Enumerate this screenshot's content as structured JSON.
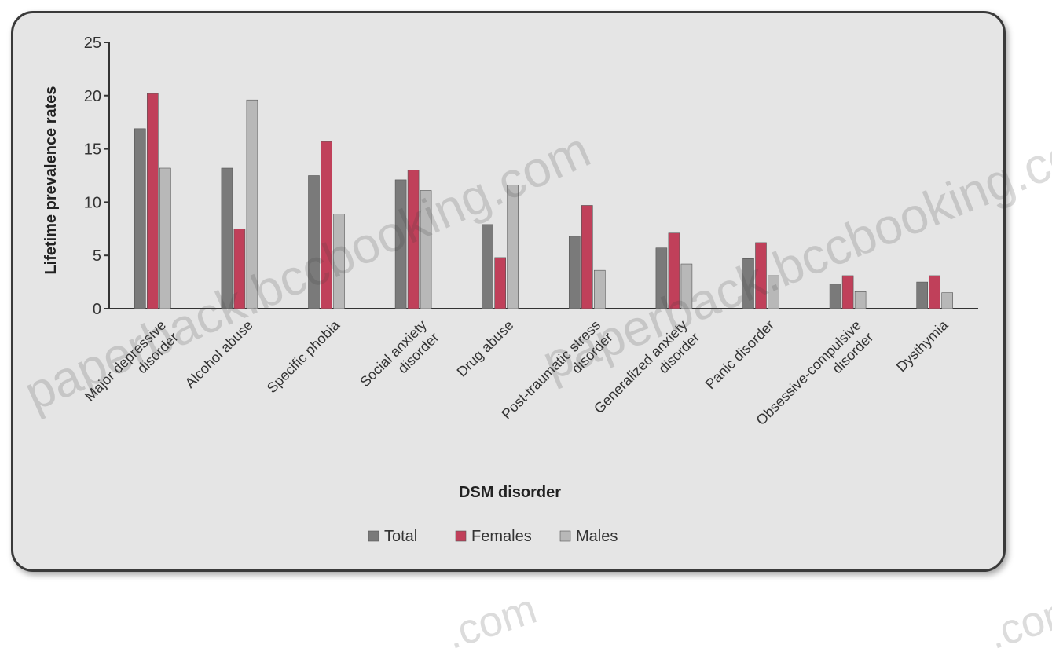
{
  "chart_data": {
    "type": "bar",
    "title": "",
    "xlabel": "DSM disorder",
    "ylabel": "Lifetime prevalence rates",
    "ylim": [
      0,
      25
    ],
    "yticks": [
      "0",
      "5",
      "10",
      "15",
      "20",
      "25"
    ],
    "grid": false,
    "legend_position": "bottom",
    "categories": [
      "Major depressive disorder",
      "Alcohol abuse",
      "Specific phobia",
      "Social anxiety disorder",
      "Drug abuse",
      "Post-traumatic stress disorder",
      "Generalized anxiety disorder",
      "Panic disorder",
      "Obsessive-compulsive disorder",
      "Dysthymia"
    ],
    "series": [
      {
        "name": "Total",
        "color": "#7a7a7a",
        "values": [
          16.9,
          13.2,
          12.5,
          12.1,
          7.9,
          6.8,
          5.7,
          4.7,
          2.3,
          2.5
        ]
      },
      {
        "name": "Females",
        "color": "#c0405a",
        "values": [
          20.2,
          7.5,
          15.7,
          13.0,
          4.8,
          9.7,
          7.1,
          6.2,
          3.1,
          3.1
        ]
      },
      {
        "name": "Males",
        "color": "#b8b8b8",
        "values": [
          13.2,
          19.6,
          8.9,
          11.1,
          11.6,
          3.6,
          4.2,
          3.1,
          1.6,
          1.5
        ]
      }
    ]
  },
  "watermarks": [
    "paperback.bccbooking.com",
    "paperback.bccbooking.com",
    ".com",
    ".com"
  ]
}
